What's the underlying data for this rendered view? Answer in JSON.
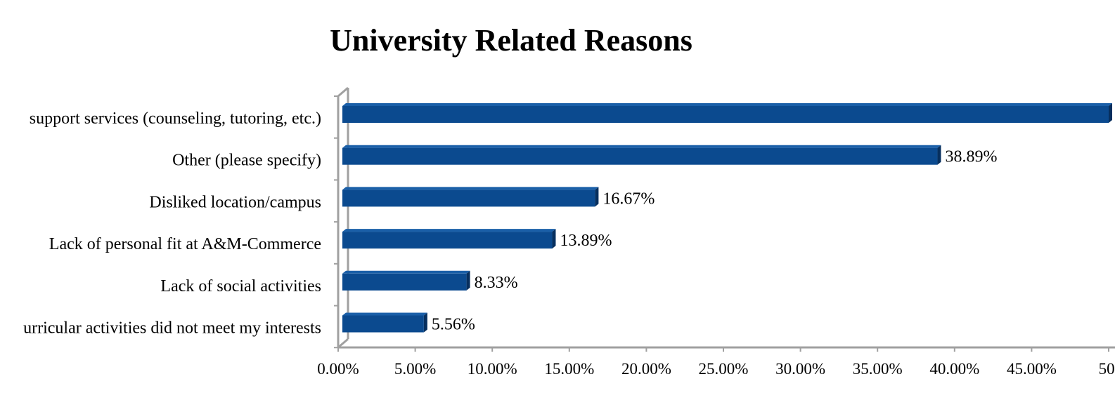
{
  "chart_data": {
    "type": "bar",
    "orientation": "horizontal",
    "title": "University Related Reasons",
    "categories": [
      "support services (counseling, tutoring, etc.)",
      "Other (please specify)",
      "Disliked location/campus",
      "Lack of personal fit at A&M-Commerce",
      "Lack of social activities",
      "urricular activities did not meet my interests"
    ],
    "values": [
      50.0,
      38.89,
      16.67,
      13.89,
      8.33,
      5.56
    ],
    "data_labels": [
      "",
      "38.89%",
      "16.67%",
      "13.89%",
      "8.33%",
      "5.56%"
    ],
    "x_ticks": [
      "0.00%",
      "5.00%",
      "10.00%",
      "15.00%",
      "20.00%",
      "25.00%",
      "30.00%",
      "35.00%",
      "40.00%",
      "45.00%",
      "50."
    ],
    "xlim": [
      0,
      50
    ],
    "xlabel": "",
    "ylabel": "",
    "grid": false,
    "legend": "none",
    "colors": {
      "bar_front": "#0B4A8F",
      "bar_top": "#1A5FA8",
      "bar_side": "#072F5E",
      "axis": "#A0A0A0",
      "text": "#000000"
    }
  }
}
